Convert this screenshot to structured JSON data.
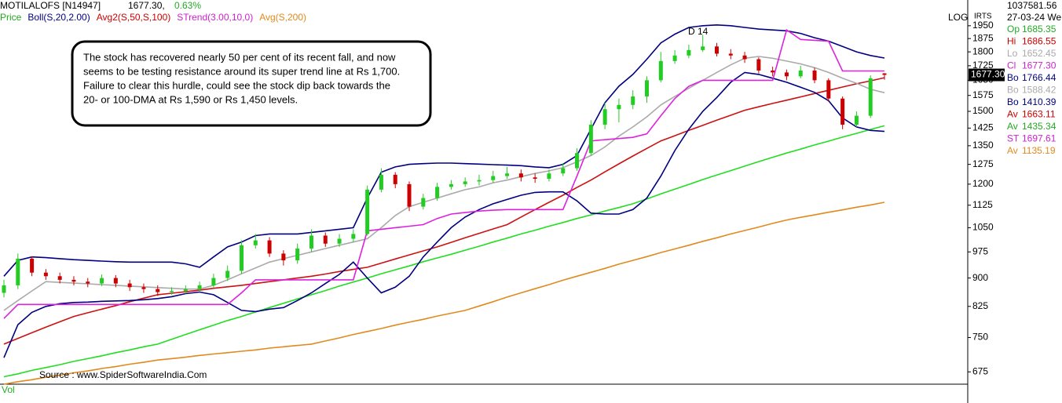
{
  "header": {
    "symbol": "MOTILALOFS [N14947]",
    "price": "1677.30,",
    "change": "0.63%",
    "indicators": [
      {
        "text": "Price",
        "color": "#22aa22"
      },
      {
        "text": "Boll(S,20,2.00)",
        "color": "#000080"
      },
      {
        "text": "Avg2(S,50,S,100)",
        "color": "#cc0000"
      },
      {
        "text": "STrend(3.00,10,0)",
        "color": "#cc22cc"
      },
      {
        "text": "Avg(S,200)",
        "color": "#e08a1e"
      }
    ],
    "log_label": "LOG",
    "corner_label": "IRTS"
  },
  "info": {
    "value": "1037581.56",
    "date": "27-03-24 We",
    "rows": [
      {
        "label": "Op",
        "value": "1685.35",
        "color": "#22aa22"
      },
      {
        "label": "Hi",
        "value": "1686.55",
        "color": "#cc0000"
      },
      {
        "label": "Lo",
        "value": "1652.45",
        "color": "#aaaaaa"
      },
      {
        "label": "Cl",
        "value": "1677.30",
        "color": "#cc22cc"
      },
      {
        "label": "Bo",
        "value": "1766.44",
        "color": "#000080"
      },
      {
        "label": "Bo",
        "value": "1588.42",
        "color": "#aaaaaa"
      },
      {
        "label": "Bo",
        "value": "1410.39",
        "color": "#000080"
      },
      {
        "label": "Av",
        "value": "1663.11",
        "color": "#cc0000"
      },
      {
        "label": "Av",
        "value": "1435.34",
        "color": "#22aa22"
      },
      {
        "label": "ST",
        "value": "1697.61",
        "color": "#cc22cc"
      },
      {
        "label": "Av",
        "value": "1135.19",
        "color": "#e08a1e"
      }
    ]
  },
  "annotation": {
    "lines": [
      "The stock has recovered nearly 50 per cent of its recent fall, and now",
      "seems to be testing resistance around its super trend line at Rs 1,700.",
      "Failure to clear this hurdle, could see the stock dip back towards the",
      "20- or 100-DMA at Rs 1,590 or Rs 1,450 levels."
    ]
  },
  "source": "Source : www.SpiderSoftwareIndia.Com",
  "marker_label": "D 14",
  "volume_label": "Vol",
  "chart_data": {
    "type": "candlestick",
    "log_scale": true,
    "ylim": [
      650,
      2100
    ],
    "yticks": [
      675,
      750,
      825,
      900,
      975,
      1050,
      1125,
      1200,
      1275,
      1350,
      1425,
      1500,
      1575,
      1650,
      1725,
      1800,
      1875,
      1950
    ],
    "last_price": {
      "value": 1677.3,
      "label": "1677.30"
    },
    "up_color": "#22cc22",
    "down_color": "#cc0000",
    "open": [
      860,
      880,
      955,
      915,
      905,
      895,
      890,
      885,
      900,
      885,
      875,
      870,
      862,
      865,
      870,
      880,
      900,
      920,
      995,
      1010,
      970,
      950,
      985,
      1025,
      1000,
      1015,
      1030,
      1180,
      1235,
      1200,
      1120,
      1150,
      1190,
      1200,
      1210,
      1215,
      1230,
      1240,
      1225,
      1220,
      1240,
      1260,
      1320,
      1440,
      1510,
      1530,
      1570,
      1650,
      1750,
      1780,
      1810,
      1830,
      1790,
      1780,
      1760,
      1700,
      1690,
      1670,
      1700,
      1650,
      1560,
      1440,
      1480,
      1685.35
    ],
    "high": [
      895,
      970,
      962,
      925,
      915,
      905,
      900,
      910,
      908,
      895,
      885,
      880,
      875,
      880,
      890,
      912,
      935,
      1010,
      1030,
      1020,
      980,
      1000,
      1045,
      1035,
      1030,
      1045,
      1195,
      1260,
      1245,
      1210,
      1165,
      1205,
      1215,
      1225,
      1235,
      1250,
      1265,
      1255,
      1240,
      1255,
      1280,
      1340,
      1460,
      1540,
      1560,
      1600,
      1670,
      1800,
      1810,
      1840,
      1895,
      1850,
      1815,
      1800,
      1770,
      1720,
      1705,
      1725,
      1715,
      1660,
      1570,
      1500,
      1675,
      1686.55
    ],
    "low": [
      848,
      870,
      905,
      895,
      885,
      880,
      875,
      878,
      875,
      865,
      860,
      852,
      855,
      858,
      862,
      872,
      892,
      912,
      985,
      960,
      935,
      940,
      975,
      990,
      990,
      1005,
      1025,
      1170,
      1185,
      1105,
      1110,
      1140,
      1180,
      1190,
      1195,
      1205,
      1220,
      1210,
      1205,
      1210,
      1230,
      1250,
      1310,
      1420,
      1450,
      1510,
      1540,
      1640,
      1735,
      1765,
      1800,
      1775,
      1760,
      1740,
      1685,
      1670,
      1650,
      1660,
      1635,
      1545,
      1420,
      1430,
      1470,
      1652.45
    ],
    "close": [
      880,
      955,
      915,
      905,
      895,
      890,
      885,
      900,
      885,
      875,
      870,
      862,
      865,
      870,
      880,
      900,
      920,
      995,
      1010,
      970,
      950,
      985,
      1025,
      1000,
      1015,
      1030,
      1180,
      1235,
      1200,
      1120,
      1150,
      1190,
      1200,
      1210,
      1215,
      1230,
      1240,
      1225,
      1220,
      1240,
      1260,
      1320,
      1440,
      1510,
      1530,
      1570,
      1650,
      1750,
      1780,
      1810,
      1830,
      1790,
      1780,
      1760,
      1700,
      1690,
      1670,
      1700,
      1650,
      1560,
      1440,
      1480,
      1660,
      1677.3
    ],
    "series": [
      {
        "color": "#e08a1e",
        "values": [
          650,
          655,
          659,
          664,
          668,
          673,
          677,
          682,
          686,
          691,
          695,
          700,
          703,
          706,
          710,
          713,
          716,
          719,
          722,
          726,
          729,
          732,
          735,
          742,
          749,
          757,
          764,
          771,
          779,
          786,
          793,
          801,
          808,
          815,
          826,
          837,
          849,
          860,
          871,
          882,
          894,
          905,
          916,
          927,
          939,
          950,
          961,
          973,
          984,
          995,
          1007,
          1018,
          1030,
          1041,
          1052,
          1064,
          1075,
          1084,
          1092,
          1101,
          1109,
          1118,
          1126,
          1135.19
        ]
      },
      {
        "color": "#22dd22",
        "values": [
          665,
          671,
          678,
          684,
          690,
          697,
          703,
          709,
          716,
          722,
          729,
          735,
          746,
          757,
          768,
          779,
          790,
          800,
          811,
          822,
          833,
          844,
          855,
          866,
          878,
          889,
          900,
          912,
          923,
          934,
          946,
          957,
          968,
          980,
          992,
          1005,
          1017,
          1030,
          1042,
          1055,
          1067,
          1080,
          1092,
          1105,
          1117,
          1130,
          1147,
          1165,
          1182,
          1199,
          1217,
          1234,
          1251,
          1268,
          1286,
          1303,
          1320,
          1336,
          1353,
          1369,
          1386,
          1402,
          1419,
          1435.34
        ]
      },
      {
        "color": "#cc1111",
        "values": [
          735,
          748,
          761,
          774,
          787,
          800,
          809,
          818,
          827,
          837,
          846,
          855,
          859,
          863,
          867,
          872,
          876,
          880,
          885,
          890,
          895,
          900,
          905,
          911,
          918,
          924,
          930,
          942,
          954,
          966,
          978,
          990,
          1004,
          1018,
          1032,
          1046,
          1060,
          1085,
          1110,
          1135,
          1160,
          1188,
          1215,
          1246,
          1277,
          1308,
          1339,
          1370,
          1392,
          1415,
          1437,
          1460,
          1482,
          1505,
          1521,
          1537,
          1552,
          1568,
          1584,
          1600,
          1616,
          1632,
          1647,
          1663.11
        ]
      },
      {
        "color": "#aaaaaa",
        "values": [
          815,
          840,
          865,
          890,
          888,
          886,
          884,
          882,
          880,
          878,
          876,
          874,
          872,
          870,
          870,
          880,
          895,
          912,
          928,
          945,
          955,
          965,
          975,
          985,
          995,
          1005,
          1015,
          1050,
          1090,
          1120,
          1135,
          1150,
          1165,
          1180,
          1190,
          1205,
          1215,
          1228,
          1240,
          1250,
          1262,
          1285,
          1310,
          1345,
          1390,
          1430,
          1475,
          1530,
          1570,
          1610,
          1650,
          1690,
          1730,
          1765,
          1775,
          1765,
          1750,
          1735,
          1715,
          1690,
          1660,
          1635,
          1605,
          1588.42
        ]
      },
      {
        "color": "#000080",
        "values": [
          905,
          950,
          960,
          958,
          955,
          952,
          950,
          948,
          946,
          945,
          945,
          945,
          945,
          940,
          930,
          960,
          990,
          1005,
          1025,
          1030,
          1030,
          1030,
          1035,
          1040,
          1045,
          1050,
          1150,
          1245,
          1265,
          1275,
          1278,
          1280,
          1280,
          1278,
          1276,
          1274,
          1272,
          1270,
          1265,
          1262,
          1275,
          1310,
          1420,
          1540,
          1620,
          1680,
          1760,
          1850,
          1900,
          1940,
          1950,
          1955,
          1950,
          1940,
          1930,
          1925,
          1920,
          1905,
          1880,
          1860,
          1830,
          1800,
          1780,
          1766.44
        ]
      },
      {
        "color": "#000080",
        "values": [
          705,
          780,
          810,
          825,
          832,
          835,
          836,
          838,
          839,
          840,
          842,
          845,
          850,
          858,
          862,
          855,
          835,
          815,
          812,
          818,
          822,
          840,
          860,
          885,
          910,
          945,
          900,
          860,
          875,
          905,
          960,
          1005,
          1050,
          1085,
          1110,
          1130,
          1145,
          1160,
          1170,
          1172,
          1172,
          1140,
          1098,
          1095,
          1095,
          1110,
          1150,
          1230,
          1330,
          1420,
          1500,
          1565,
          1640,
          1690,
          1680,
          1660,
          1640,
          1615,
          1590,
          1550,
          1470,
          1430,
          1415,
          1410.39
        ]
      },
      {
        "color": "#dd22dd",
        "values": [
          795,
          830,
          830,
          830,
          830,
          830,
          830,
          830,
          830,
          830,
          830,
          830,
          830,
          830,
          830,
          830,
          830,
          860,
          895,
          895,
          895,
          895,
          895,
          895,
          895,
          895,
          1040,
          1045,
          1050,
          1055,
          1060,
          1080,
          1095,
          1100,
          1105,
          1108,
          1110,
          1110,
          1110,
          1110,
          1110,
          1230,
          1370,
          1375,
          1380,
          1385,
          1400,
          1480,
          1560,
          1620,
          1650,
          1650,
          1650,
          1650,
          1650,
          1650,
          1925,
          1870,
          1865,
          1860,
          1697.61,
          1697.61,
          1697.61,
          1697.61
        ]
      }
    ]
  }
}
